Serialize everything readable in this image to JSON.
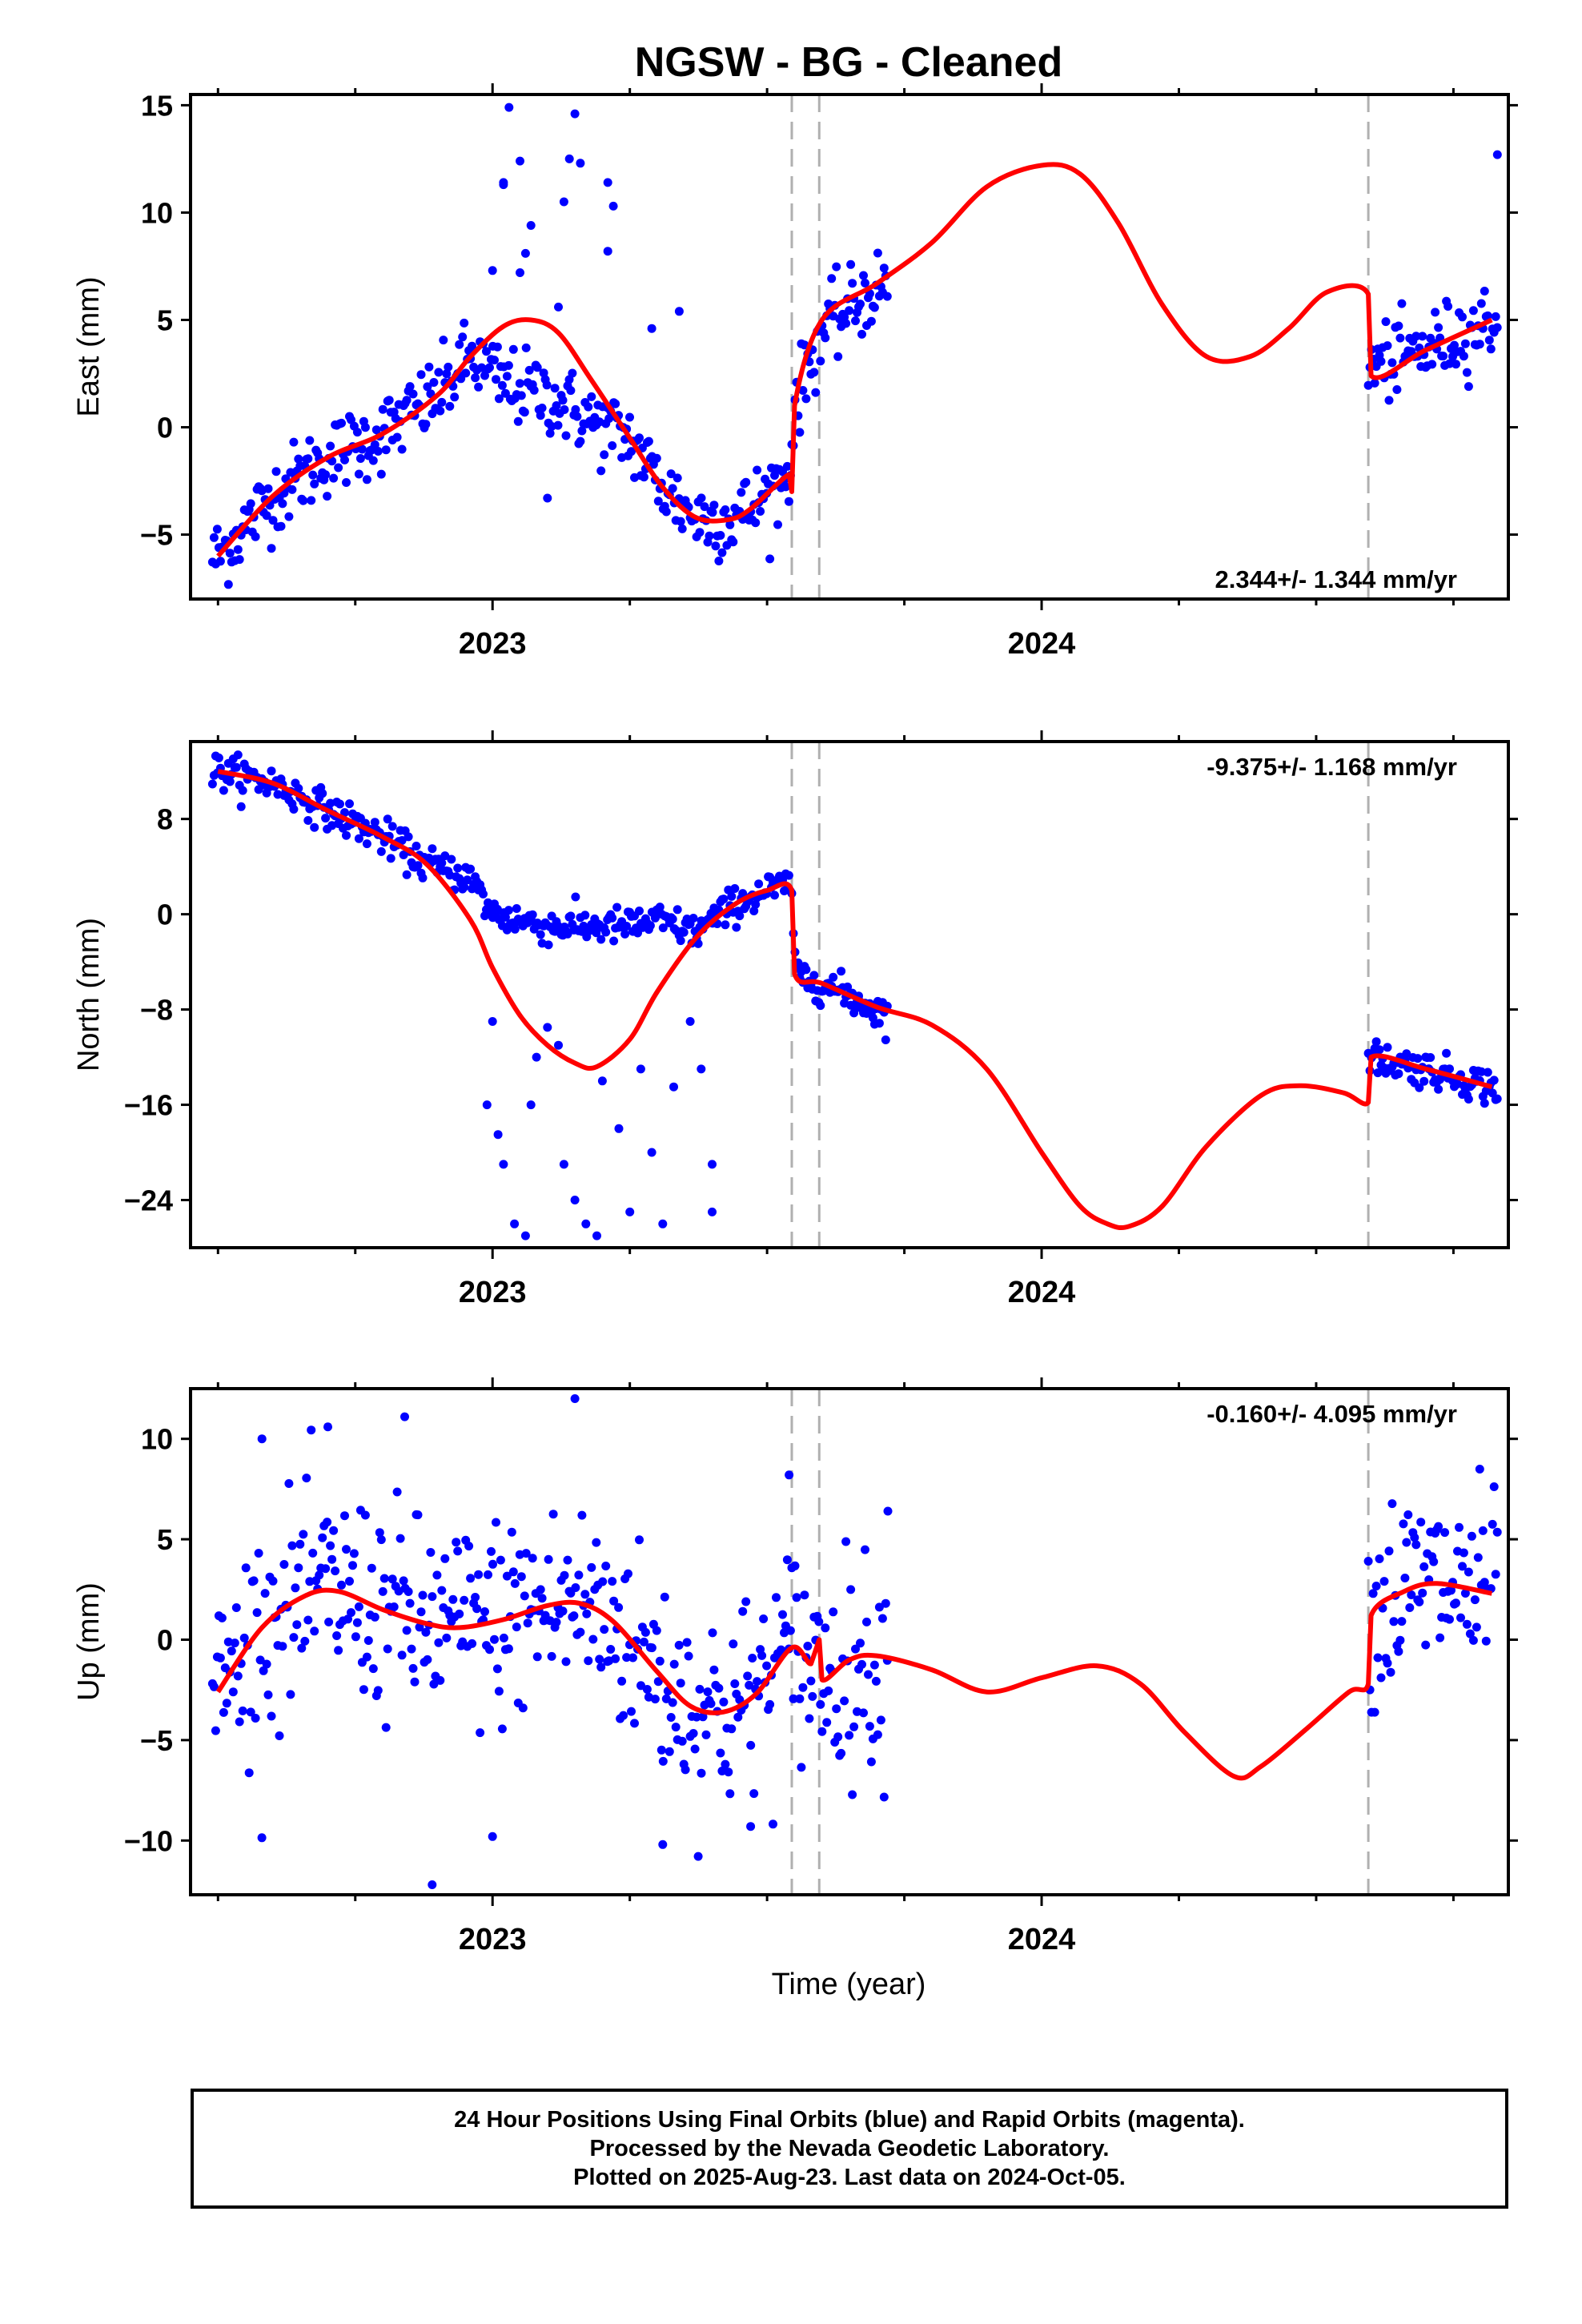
{
  "chart_data": {
    "type": "scatter",
    "title": "NGSW  - BG - Cleaned",
    "xlabel": "Time (year)",
    "x_tick_labels": [
      "2023",
      "2024"
    ],
    "x_range": [
      2022.45,
      2024.85
    ],
    "event_lines": [
      2023.545,
      2023.595,
      2024.595
    ],
    "colors": {
      "observed": "#0000ff",
      "model": "#ff0000",
      "events": "#b0b0b0"
    },
    "series_names": [
      "Final Orbits (blue)",
      "Rapid Orbits (magenta)"
    ],
    "panels": [
      {
        "ylabel": "East (mm)",
        "ylim": [
          -8,
          15.5
        ],
        "yticks": [
          -5,
          0,
          5,
          10,
          15
        ],
        "ytick_labels": [
          "−5",
          "0",
          "5",
          "10",
          "15"
        ],
        "rate": "2.344+/- 1.344 mm/yr",
        "rate_position": "bottom-right",
        "model": {
          "x": [
            2022.5,
            2022.6,
            2022.7,
            2022.8,
            2022.9,
            2022.96,
            2023.02,
            2023.07,
            2023.12,
            2023.18,
            2023.25,
            2023.31,
            2023.37,
            2023.43,
            2023.47,
            2023.54,
            2023.545,
            2023.55,
            2023.6,
            2023.7,
            2023.8,
            2023.9,
            2024.0,
            2024.07,
            2024.14,
            2024.22,
            2024.3,
            2024.38,
            2024.45,
            2024.52,
            2024.595,
            2024.6,
            2024.7,
            2024.82
          ],
          "y": [
            -6,
            -3.2,
            -1.4,
            -0.3,
            1.5,
            3.3,
            4.7,
            5.0,
            4.4,
            2.2,
            -0.5,
            -2.8,
            -4.2,
            -4.3,
            -3.8,
            -2.2,
            -3,
            1,
            5,
            6.7,
            8.6,
            11.2,
            12.2,
            11.8,
            9.5,
            5.7,
            3.3,
            3.3,
            4.6,
            6.3,
            6.2,
            2.4,
            3.6,
            5.0
          ]
        },
        "observed": {
          "trend": [
            [
              2022.5,
              -6
            ],
            [
              2022.6,
              -3.2
            ],
            [
              2022.7,
              -1.4
            ],
            [
              2022.8,
              -0.3
            ],
            [
              2022.9,
              1.5
            ],
            [
              2022.96,
              3.3
            ],
            [
              2023.02,
              2
            ],
            [
              2023.1,
              1.5
            ],
            [
              2023.2,
              0
            ],
            [
              2023.25,
              -0.5
            ],
            [
              2023.31,
              -2.8
            ],
            [
              2023.37,
              -4.2
            ],
            [
              2023.43,
              -4.3
            ],
            [
              2023.47,
              -3.8
            ],
            [
              2023.54,
              -2.2
            ],
            [
              2023.55,
              1
            ],
            [
              2023.6,
              4.5
            ],
            [
              2023.7,
              6.5
            ],
            [
              2024.595,
              2.8
            ],
            [
              2024.7,
              3.6
            ],
            [
              2024.82,
              5.0
            ]
          ],
          "scatter_sd": 0.9,
          "ranges": [
            [
              2022.49,
              2023.545
            ],
            [
              2023.545,
              2023.72
            ],
            [
              2024.595,
              2024.83
            ]
          ]
        },
        "outliers": [
          [
            2023.0,
            7.3
          ],
          [
            2023.02,
            11.4
          ],
          [
            2023.03,
            14.9
          ],
          [
            2023.05,
            12.4
          ],
          [
            2023.07,
            9.4
          ],
          [
            2023.05,
            7.2
          ],
          [
            2023.12,
            5.6
          ],
          [
            2023.13,
            10.5
          ],
          [
            2023.14,
            12.5
          ],
          [
            2023.15,
            14.6
          ],
          [
            2023.16,
            12.3
          ],
          [
            2023.21,
            11.4
          ],
          [
            2023.22,
            10.3
          ],
          [
            2023.21,
            8.2
          ],
          [
            2023.29,
            4.6
          ],
          [
            2023.34,
            5.4
          ],
          [
            2023.1,
            -3.3
          ],
          [
            2023.02,
            11.3
          ],
          [
            2023.06,
            8.1
          ],
          [
            2024.83,
            12.7
          ]
        ]
      },
      {
        "ylabel": "North (mm)",
        "ylim": [
          -28,
          14.5
        ],
        "yticks": [
          -24,
          -16,
          -8,
          0,
          8
        ],
        "ytick_labels": [
          "−24",
          "−16",
          "−8",
          "0",
          "8"
        ],
        "rate": "-9.375+/- 1.168 mm/yr",
        "rate_position": "top-right",
        "model": {
          "x": [
            2022.5,
            2022.6,
            2022.7,
            2022.8,
            2022.88,
            2022.96,
            2023.0,
            2023.05,
            2023.1,
            2023.15,
            2023.19,
            2023.25,
            2023.3,
            2023.37,
            2023.44,
            2023.5,
            2023.545,
            2023.55,
            2023.6,
            2023.7,
            2023.8,
            2023.9,
            2024.0,
            2024.07,
            2024.12,
            2024.16,
            2024.22,
            2024.3,
            2024.4,
            2024.47,
            2024.55,
            2024.595,
            2024.6,
            2024.7,
            2024.82
          ],
          "y": [
            12,
            11,
            8.7,
            6.5,
            4.2,
            -0.5,
            -4.5,
            -8.5,
            -11,
            -12.5,
            -12.8,
            -10.5,
            -6.5,
            -2,
            0.8,
            2,
            2,
            -5,
            -5.8,
            -7.8,
            -9.3,
            -13,
            -20,
            -24.5,
            -26,
            -26.2,
            -24.5,
            -19.5,
            -15.2,
            -14.4,
            -15,
            -15.8,
            -12,
            -13,
            -14.5
          ]
        },
        "observed": {
          "trend": [
            [
              2022.5,
              12
            ],
            [
              2022.6,
              11
            ],
            [
              2022.7,
              8.7
            ],
            [
              2022.8,
              6.5
            ],
            [
              2022.88,
              4.2
            ],
            [
              2022.96,
              3
            ],
            [
              2023.0,
              0
            ],
            [
              2023.1,
              -1
            ],
            [
              2023.25,
              -1
            ],
            [
              2023.3,
              -0.5
            ],
            [
              2023.37,
              -1.5
            ],
            [
              2023.44,
              0.8
            ],
            [
              2023.5,
              2
            ],
            [
              2023.545,
              2.5
            ],
            [
              2023.55,
              -5
            ],
            [
              2023.6,
              -5.8
            ],
            [
              2023.72,
              -8.5
            ],
            [
              2024.595,
              -12
            ],
            [
              2024.7,
              -13
            ],
            [
              2024.82,
              -14.5
            ]
          ],
          "scatter_sd": 0.75,
          "ranges": [
            [
              2022.49,
              2023.545
            ],
            [
              2023.545,
              2023.72
            ],
            [
              2024.595,
              2024.83
            ]
          ]
        },
        "outliers": [
          [
            2023.0,
            -9
          ],
          [
            2022.99,
            -16
          ],
          [
            2023.01,
            -18.5
          ],
          [
            2023.02,
            -21
          ],
          [
            2023.04,
            -26
          ],
          [
            2023.06,
            -27
          ],
          [
            2023.07,
            -16
          ],
          [
            2023.1,
            -9.5
          ],
          [
            2023.13,
            -21
          ],
          [
            2023.15,
            -24
          ],
          [
            2023.17,
            -26
          ],
          [
            2023.19,
            -27
          ],
          [
            2023.2,
            -14
          ],
          [
            2023.23,
            -18
          ],
          [
            2023.25,
            -25
          ],
          [
            2023.27,
            -13
          ],
          [
            2023.29,
            -20
          ],
          [
            2023.31,
            -26
          ],
          [
            2023.33,
            -14.5
          ],
          [
            2023.36,
            -9
          ],
          [
            2023.38,
            -13
          ],
          [
            2023.4,
            -21
          ],
          [
            2023.4,
            -25
          ],
          [
            2023.08,
            -12
          ],
          [
            2023.12,
            -11
          ]
        ]
      },
      {
        "ylabel": "Up (mm)",
        "ylim": [
          -12.7,
          12.5
        ],
        "yticks": [
          -10,
          -5,
          0,
          5,
          10
        ],
        "ytick_labels": [
          "−10",
          "−5",
          "0",
          "5",
          "10"
        ],
        "rate": "-0.160+/- 4.095 mm/yr",
        "rate_position": "top-right",
        "model": {
          "x": [
            2022.5,
            2022.58,
            2022.66,
            2022.72,
            2022.8,
            2022.88,
            2022.94,
            2023.02,
            2023.1,
            2023.16,
            2023.22,
            2023.3,
            2023.36,
            2023.42,
            2023.48,
            2023.545,
            2023.58,
            2023.595,
            2023.6,
            2023.65,
            2023.7,
            2023.8,
            2023.9,
            2024.0,
            2024.1,
            2024.18,
            2024.26,
            2024.35,
            2024.4,
            2024.48,
            2024.56,
            2024.595,
            2024.6,
            2024.66,
            2024.72,
            2024.82
          ],
          "y": [
            -2.6,
            0.6,
            2.2,
            2.4,
            1.5,
            0.8,
            0.6,
            1.0,
            1.7,
            1.8,
            0.9,
            -1.6,
            -3.3,
            -3.6,
            -2.7,
            -0.4,
            -1.2,
            0,
            -2,
            -1.0,
            -0.8,
            -1.5,
            -2.6,
            -1.9,
            -1.3,
            -2.2,
            -4.6,
            -6.8,
            -6.3,
            -4.5,
            -2.6,
            -2.2,
            1.2,
            2.4,
            2.8,
            2.3
          ]
        },
        "observed": {
          "trend": [
            [
              2022.5,
              -2.6
            ],
            [
              2022.58,
              0.6
            ],
            [
              2022.66,
              2.2
            ],
            [
              2022.72,
              2.4
            ],
            [
              2022.8,
              1.5
            ],
            [
              2022.88,
              0.8
            ],
            [
              2022.94,
              0.6
            ],
            [
              2023.02,
              1.0
            ],
            [
              2023.1,
              1.7
            ],
            [
              2023.16,
              1.8
            ],
            [
              2023.22,
              0.9
            ],
            [
              2023.3,
              -1.6
            ],
            [
              2023.36,
              -3.3
            ],
            [
              2023.42,
              -3.6
            ],
            [
              2023.48,
              -2.7
            ],
            [
              2023.545,
              -0.4
            ],
            [
              2023.6,
              -1.5
            ],
            [
              2023.72,
              -1.0
            ],
            [
              2024.595,
              1.2
            ],
            [
              2024.66,
              2.4
            ],
            [
              2024.72,
              2.8
            ],
            [
              2024.82,
              2.3
            ]
          ],
          "scatter_sd": 2.6,
          "ranges": [
            [
              2022.49,
              2023.545
            ],
            [
              2023.545,
              2023.72
            ],
            [
              2024.595,
              2024.83
            ]
          ]
        },
        "outliers": [
          [
            2022.89,
            -12.2
          ],
          [
            2023.0,
            -9.8
          ],
          [
            2023.15,
            12
          ],
          [
            2023.31,
            -10.2
          ],
          [
            2023.47,
            -9.3
          ],
          [
            2023.54,
            8.2
          ],
          [
            2023.72,
            6.4
          ],
          [
            2022.58,
            10
          ],
          [
            2022.7,
            10.6
          ],
          [
            2022.84,
            11.1
          ]
        ]
      }
    ]
  },
  "footer": {
    "line1": "24 Hour Positions Using Final Orbits (blue) and Rapid Orbits (magenta).",
    "line2": "Processed by the Nevada Geodetic Laboratory.",
    "line3": "Plotted on 2025-Aug-23. Last data on 2024-Oct-05."
  }
}
